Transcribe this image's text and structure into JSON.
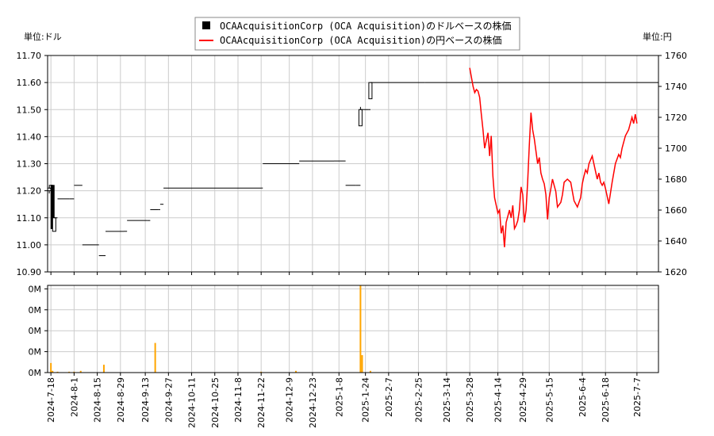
{
  "chart_data": {
    "type": "line",
    "legend": {
      "placement": "top-center",
      "items": [
        {
          "label": "OCAAcquisitionCorp (OCA Acquisition)のドルベースの株価",
          "color": "#000000",
          "marker": "square"
        },
        {
          "label": "OCAAcquisitionCorp (OCA Acquisition)の円ベースの株価",
          "color": "#ff0000",
          "marker": "line"
        }
      ]
    },
    "left_unit_label": "単位:ドル",
    "right_unit_label": "単位:円",
    "grid": true,
    "x_axis": {
      "type": "date",
      "range": [
        "2024-07-16",
        "2025-07-20"
      ],
      "tick_labels": [
        "2024-7-18",
        "2024-8-1",
        "2024-8-15",
        "2024-8-29",
        "2024-9-13",
        "2024-9-27",
        "2024-10-11",
        "2024-10-25",
        "2024-11-8",
        "2024-11-22",
        "2024-12-9",
        "2024-12-23",
        "2025-1-8",
        "2025-1-24",
        "2025-2-7",
        "2025-2-25",
        "2025-3-14",
        "2025-3-28",
        "2025-4-14",
        "2025-4-29",
        "2025-5-15",
        "2025-6-4",
        "2025-6-18",
        "2025-7-7"
      ]
    },
    "y_left": {
      "range": [
        10.9,
        11.7
      ],
      "tick_labels": [
        "10.90",
        "11.00",
        "11.10",
        "11.20",
        "11.30",
        "11.40",
        "11.50",
        "11.60",
        "11.70"
      ]
    },
    "y_right": {
      "range": [
        1620,
        1760
      ],
      "tick_labels": [
        "1620",
        "1640",
        "1660",
        "1680",
        "1700",
        "1720",
        "1740",
        "1760"
      ]
    },
    "volume_axis": {
      "range": [
        0,
        1
      ],
      "tick_labels": [
        "0M",
        "0M",
        "0M",
        "0M",
        "0M"
      ]
    },
    "series": [
      {
        "kind": "ohlc",
        "color": "#000000",
        "points": [
          {
            "x": "2024-07-17",
            "o": 11.2,
            "h": 11.21,
            "l": 11.19,
            "c": 11.21
          },
          {
            "x": "2024-07-18",
            "o": 11.21,
            "h": 11.22,
            "l": 11.2,
            "c": 11.22
          },
          {
            "x": "2024-07-19",
            "o": 11.22,
            "h": 11.22,
            "l": 11.06,
            "c": 11.06
          },
          {
            "x": "2024-07-20",
            "o": 11.05,
            "h": 11.1,
            "l": 11.05,
            "c": 11.1
          },
          {
            "x": "2024-07-22",
            "o": 11.17,
            "h": 11.17,
            "l": 11.17,
            "c": 11.17
          },
          {
            "x": "2024-07-29",
            "o": 11.17,
            "h": 11.17,
            "l": 11.17,
            "c": 11.17
          },
          {
            "x": "2024-08-01",
            "o": 11.22,
            "h": 11.22,
            "l": 11.22,
            "c": 11.22
          },
          {
            "x": "2024-08-06",
            "o": 11.0,
            "h": 11.0,
            "l": 11.0,
            "c": 11.0
          },
          {
            "x": "2024-08-14",
            "o": 11.0,
            "h": 11.0,
            "l": 11.0,
            "c": 11.0
          },
          {
            "x": "2024-08-16",
            "o": 10.96,
            "h": 10.96,
            "l": 10.96,
            "c": 10.96
          },
          {
            "x": "2024-08-20",
            "o": 11.05,
            "h": 11.05,
            "l": 11.05,
            "c": 11.05
          },
          {
            "x": "2024-08-31",
            "o": 11.05,
            "h": 11.05,
            "l": 11.05,
            "c": 11.05
          },
          {
            "x": "2024-09-02",
            "o": 11.09,
            "h": 11.09,
            "l": 11.09,
            "c": 11.09
          },
          {
            "x": "2024-09-14",
            "o": 11.09,
            "h": 11.09,
            "l": 11.09,
            "c": 11.09
          },
          {
            "x": "2024-09-16",
            "o": 11.13,
            "h": 11.13,
            "l": 11.13,
            "c": 11.13
          },
          {
            "x": "2024-09-21",
            "o": 11.13,
            "h": 11.13,
            "l": 11.13,
            "c": 11.13
          },
          {
            "x": "2024-09-22",
            "o": 11.15,
            "h": 11.15,
            "l": 11.15,
            "c": 11.15
          },
          {
            "x": "2024-09-24",
            "o": 11.21,
            "h": 11.21,
            "l": 11.21,
            "c": 11.21
          },
          {
            "x": "2024-11-22",
            "o": 11.21,
            "h": 11.21,
            "l": 11.21,
            "c": 11.21
          },
          {
            "x": "2024-11-23",
            "o": 11.3,
            "h": 11.3,
            "l": 11.3,
            "c": 11.3
          },
          {
            "x": "2024-12-13",
            "o": 11.3,
            "h": 11.3,
            "l": 11.3,
            "c": 11.3
          },
          {
            "x": "2024-12-15",
            "o": 11.31,
            "h": 11.31,
            "l": 11.31,
            "c": 11.31
          },
          {
            "x": "2025-01-05",
            "o": 11.31,
            "h": 11.31,
            "l": 11.31,
            "c": 11.31
          },
          {
            "x": "2025-01-12",
            "o": 11.22,
            "h": 11.22,
            "l": 11.22,
            "c": 11.22
          },
          {
            "x": "2025-01-18",
            "o": 11.22,
            "h": 11.22,
            "l": 11.22,
            "c": 11.22
          },
          {
            "x": "2025-01-21",
            "o": 11.44,
            "h": 11.51,
            "l": 11.44,
            "c": 11.5
          },
          {
            "x": "2025-01-23",
            "o": 11.5,
            "h": 11.5,
            "l": 11.5,
            "c": 11.5
          },
          {
            "x": "2025-01-26",
            "o": 11.5,
            "h": 11.5,
            "l": 11.5,
            "c": 11.5
          },
          {
            "x": "2025-01-27",
            "o": 11.54,
            "h": 11.6,
            "l": 11.54,
            "c": 11.6
          },
          {
            "x": "2025-03-01",
            "o": 11.6,
            "h": 11.6,
            "l": 11.6,
            "c": 11.6
          },
          {
            "x": "2025-05-01",
            "o": 11.6,
            "h": 11.6,
            "l": 11.6,
            "c": 11.6
          },
          {
            "x": "2025-07-20",
            "o": 11.6,
            "h": 11.6,
            "l": 11.6,
            "c": 11.6
          }
        ]
      },
      {
        "kind": "line",
        "axis": "right",
        "color": "#ff0000",
        "points": [
          [
            "2025-03-28",
            1752
          ],
          [
            "2025-03-29",
            1746
          ],
          [
            "2025-03-30",
            1740
          ],
          [
            "2025-03-31",
            1736
          ],
          [
            "2025-04-01",
            1738
          ],
          [
            "2025-04-02",
            1737
          ],
          [
            "2025-04-03",
            1733
          ],
          [
            "2025-04-04",
            1722
          ],
          [
            "2025-04-05",
            1712
          ],
          [
            "2025-04-06",
            1700
          ],
          [
            "2025-04-07",
            1705
          ],
          [
            "2025-04-08",
            1710
          ],
          [
            "2025-04-09",
            1695
          ],
          [
            "2025-04-10",
            1708
          ],
          [
            "2025-04-11",
            1682
          ],
          [
            "2025-04-12",
            1668
          ],
          [
            "2025-04-13",
            1663
          ],
          [
            "2025-04-14",
            1658
          ],
          [
            "2025-04-15",
            1660
          ],
          [
            "2025-04-16",
            1645
          ],
          [
            "2025-04-17",
            1650
          ],
          [
            "2025-04-18",
            1636
          ],
          [
            "2025-04-19",
            1652
          ],
          [
            "2025-04-20",
            1656
          ],
          [
            "2025-04-21",
            1660
          ],
          [
            "2025-04-22",
            1655
          ],
          [
            "2025-04-23",
            1663
          ],
          [
            "2025-04-24",
            1648
          ],
          [
            "2025-04-25",
            1650
          ],
          [
            "2025-04-26",
            1653
          ],
          [
            "2025-04-27",
            1660
          ],
          [
            "2025-04-28",
            1675
          ],
          [
            "2025-04-29",
            1670
          ],
          [
            "2025-04-30",
            1652
          ],
          [
            "2025-05-01",
            1660
          ],
          [
            "2025-05-02",
            1678
          ],
          [
            "2025-05-03",
            1702
          ],
          [
            "2025-05-04",
            1723
          ],
          [
            "2025-05-05",
            1712
          ],
          [
            "2025-05-06",
            1706
          ],
          [
            "2025-05-07",
            1698
          ],
          [
            "2025-05-08",
            1690
          ],
          [
            "2025-05-09",
            1694
          ],
          [
            "2025-05-10",
            1684
          ],
          [
            "2025-05-11",
            1680
          ],
          [
            "2025-05-12",
            1677
          ],
          [
            "2025-05-13",
            1670
          ],
          [
            "2025-05-14",
            1654
          ],
          [
            "2025-05-15",
            1668
          ],
          [
            "2025-05-16",
            1674
          ],
          [
            "2025-05-17",
            1680
          ],
          [
            "2025-05-18",
            1676
          ],
          [
            "2025-05-19",
            1672
          ],
          [
            "2025-05-20",
            1662
          ],
          [
            "2025-05-22",
            1665
          ],
          [
            "2025-05-23",
            1670
          ],
          [
            "2025-05-24",
            1678
          ],
          [
            "2025-05-26",
            1680
          ],
          [
            "2025-05-28",
            1678
          ],
          [
            "2025-05-29",
            1672
          ],
          [
            "2025-05-30",
            1666
          ],
          [
            "2025-06-01",
            1662
          ],
          [
            "2025-06-03",
            1668
          ],
          [
            "2025-06-04",
            1677
          ],
          [
            "2025-06-05",
            1682
          ],
          [
            "2025-06-06",
            1686
          ],
          [
            "2025-06-07",
            1684
          ],
          [
            "2025-06-08",
            1690
          ],
          [
            "2025-06-10",
            1695
          ],
          [
            "2025-06-12",
            1685
          ],
          [
            "2025-06-13",
            1680
          ],
          [
            "2025-06-14",
            1684
          ],
          [
            "2025-06-15",
            1678
          ],
          [
            "2025-06-16",
            1676
          ],
          [
            "2025-06-17",
            1678
          ],
          [
            "2025-06-18",
            1674
          ],
          [
            "2025-06-20",
            1664
          ],
          [
            "2025-06-22",
            1678
          ],
          [
            "2025-06-24",
            1690
          ],
          [
            "2025-06-26",
            1696
          ],
          [
            "2025-06-27",
            1694
          ],
          [
            "2025-06-28",
            1700
          ],
          [
            "2025-06-30",
            1708
          ],
          [
            "2025-07-02",
            1712
          ],
          [
            "2025-07-04",
            1720
          ],
          [
            "2025-07-05",
            1716
          ],
          [
            "2025-07-06",
            1722
          ],
          [
            "2025-07-07",
            1716
          ]
        ]
      }
    ],
    "volume": {
      "color": "#ffa500",
      "bars": [
        [
          "2024-07-18",
          0.11
        ],
        [
          "2024-07-19",
          0.02
        ],
        [
          "2024-07-22",
          0.01
        ],
        [
          "2024-07-29",
          0.01
        ],
        [
          "2024-08-01",
          0.01
        ],
        [
          "2024-08-05",
          0.02
        ],
        [
          "2024-08-19",
          0.09
        ],
        [
          "2024-09-19",
          0.34
        ],
        [
          "2024-11-22",
          0.01
        ],
        [
          "2024-12-13",
          0.02
        ],
        [
          "2025-01-21",
          1.0
        ],
        [
          "2025-01-22",
          0.2
        ],
        [
          "2025-01-27",
          0.02
        ]
      ]
    }
  }
}
